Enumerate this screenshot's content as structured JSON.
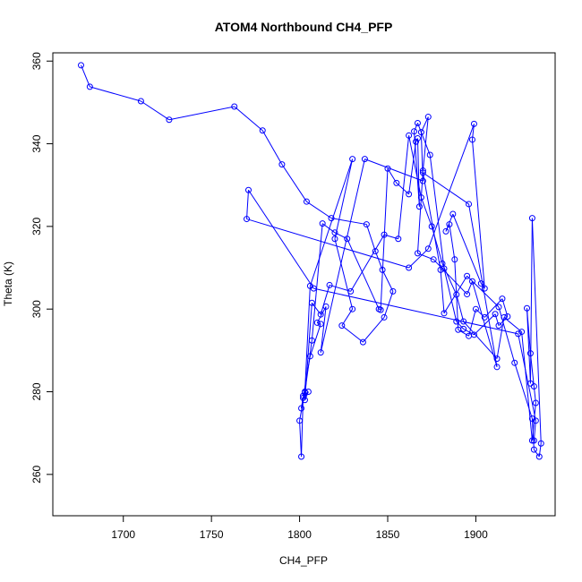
{
  "chart_data": {
    "type": "scatter",
    "title": "ATOM4 Northbound CH4_PFP",
    "xlabel": "CH4_PFP",
    "ylabel": "Theta (K)",
    "xlim": [
      1660,
      1945
    ],
    "ylim": [
      250,
      362
    ],
    "x_ticks": [
      1700,
      1750,
      1800,
      1850,
      1900
    ],
    "y_ticks": [
      260,
      280,
      300,
      320,
      340,
      360
    ],
    "grid": false,
    "legend": "none",
    "series_color": "#0000ff",
    "series": [
      {
        "style": "points-connected",
        "points": [
          [
            1676,
            359.0
          ],
          [
            1681,
            353.8
          ],
          [
            1710,
            350.3
          ],
          [
            1726,
            345.8
          ],
          [
            1763,
            349.0
          ],
          [
            1779,
            343.2
          ],
          [
            1790,
            335.0
          ],
          [
            1804,
            326.0
          ],
          [
            1818,
            322.0
          ],
          [
            1838,
            320.5
          ],
          [
            1843,
            314.0
          ],
          [
            1847,
            309.5
          ],
          [
            1853,
            304.3
          ],
          [
            1848,
            298.0
          ],
          [
            1836,
            292.0
          ],
          [
            1824,
            296.0
          ],
          [
            1830,
            300.0
          ],
          [
            1820,
            317.0
          ],
          [
            1830,
            336.3
          ],
          [
            1806,
            305.6
          ],
          [
            1803,
            280.0
          ],
          [
            1800,
            273.0
          ],
          [
            1801,
            264.3
          ],
          [
            1802,
            278.5
          ],
          [
            1801,
            276.0
          ],
          [
            1806,
            288.6
          ],
          [
            1812,
            296.4
          ],
          [
            1810,
            296.7
          ],
          [
            1815,
            300.6
          ],
          [
            1812,
            289.5
          ],
          [
            1837,
            336.3
          ],
          [
            1870,
            331.0
          ],
          [
            1869,
            342.8
          ],
          [
            1873,
            346.5
          ],
          [
            1870,
            333.5
          ],
          [
            1867,
            313.5
          ],
          [
            1876,
            312.0
          ],
          [
            1895,
            303.6
          ],
          [
            1898,
            306.7
          ],
          [
            1912,
            286.0
          ],
          [
            1896,
            325.4
          ],
          [
            1870,
            333.0
          ],
          [
            1880,
            309.5
          ],
          [
            1882,
            299.0
          ],
          [
            1895,
            308.0
          ],
          [
            1913,
            300.5
          ],
          [
            1922,
            287.0
          ],
          [
            1932,
            273.5
          ],
          [
            1933,
            266.0
          ],
          [
            1936,
            264.3
          ],
          [
            1937,
            267.5
          ],
          [
            1932,
            322.0
          ],
          [
            1931,
            282.0
          ],
          [
            1929,
            300.2
          ],
          [
            1931,
            289.3
          ],
          [
            1933,
            281.3
          ],
          [
            1934,
            277.3
          ],
          [
            1932,
            268.2
          ],
          [
            1926,
            294.5
          ],
          [
            1916,
            298.0
          ],
          [
            1912,
            288.0
          ],
          [
            1893,
            297.0
          ],
          [
            1889,
            303.5
          ],
          [
            1881,
            311.0
          ],
          [
            1875,
            320.0
          ],
          [
            1869,
            327.0
          ],
          [
            1862,
            342.0
          ],
          [
            1856,
            317.0
          ],
          [
            1848,
            318.0
          ],
          [
            1829,
            304.3
          ],
          [
            1817,
            305.8
          ],
          [
            1812,
            298.7
          ],
          [
            1807,
            301.5
          ],
          [
            1803,
            278.0
          ],
          [
            1805,
            280.0
          ],
          [
            1802,
            279.0
          ],
          [
            1803,
            279.8
          ],
          [
            1807,
            292.4
          ],
          [
            1813,
            320.7
          ],
          [
            1820,
            318.5
          ],
          [
            1827,
            317.0
          ],
          [
            1845,
            300.0
          ],
          [
            1846,
            299.8
          ],
          [
            1850,
            334.0
          ],
          [
            1855,
            330.5
          ],
          [
            1862,
            327.8
          ],
          [
            1866,
            340.5
          ],
          [
            1867,
            341.3
          ],
          [
            1868,
            324.8
          ],
          [
            1865,
            343.0
          ],
          [
            1867,
            345.0
          ],
          [
            1874,
            337.3
          ],
          [
            1882,
            309.8
          ],
          [
            1889,
            297.0
          ],
          [
            1893,
            295.2
          ],
          [
            1899,
            293.8
          ],
          [
            1911,
            298.8
          ],
          [
            1913,
            296.0
          ],
          [
            1918,
            298.2
          ],
          [
            1915,
            302.5
          ],
          [
            1905,
            298.0
          ],
          [
            1900,
            300.0
          ],
          [
            1896,
            293.5
          ],
          [
            1890,
            295.0
          ],
          [
            1888,
            312.0
          ],
          [
            1885,
            320.5
          ],
          [
            1883,
            318.8
          ],
          [
            1887,
            323.0
          ],
          [
            1903,
            306.2
          ],
          [
            1905,
            305.0
          ],
          [
            1898,
            341.0
          ],
          [
            1899,
            344.8
          ],
          [
            1873,
            314.6
          ],
          [
            1862,
            310.0
          ],
          [
            1770,
            321.8
          ],
          [
            1771,
            328.8
          ],
          [
            1808,
            305.0
          ],
          [
            1924,
            294.0
          ],
          [
            1934,
            273.0
          ],
          [
            1933,
            268.2
          ]
        ]
      }
    ]
  }
}
